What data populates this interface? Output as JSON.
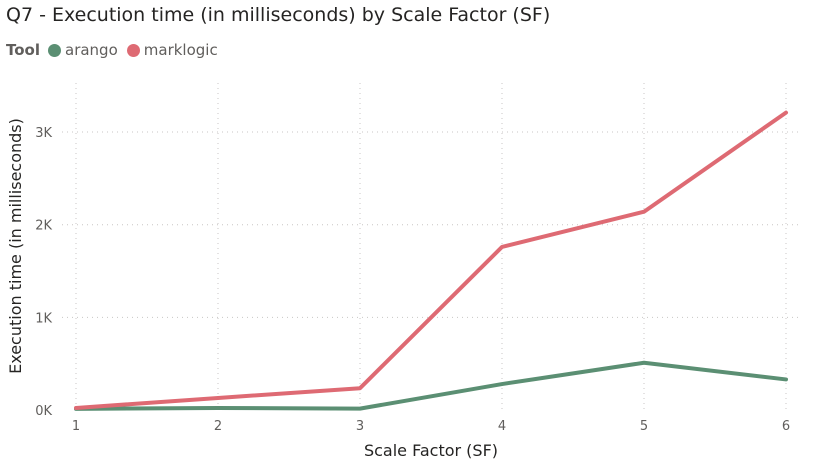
{
  "chart_data": {
    "type": "line",
    "title": "Q7 - Execution time (in milliseconds) by Scale Factor (SF)",
    "legend_title": "Tool",
    "legend_position": "top-left",
    "xlabel": "Scale Factor (SF)",
    "ylabel": "Execution time (in milliseconds)",
    "x": [
      1,
      2,
      3,
      4,
      5,
      6
    ],
    "x_tick_labels": [
      "1",
      "2",
      "3",
      "4",
      "5",
      "6"
    ],
    "y_ticks": [
      0,
      1000,
      2000,
      3000
    ],
    "y_tick_labels": [
      "0K",
      "1K",
      "2K",
      "3K"
    ],
    "ylim": [
      0,
      3400
    ],
    "grid": true,
    "series": [
      {
        "name": "arango",
        "color": "#5b8f73",
        "values": [
          12,
          22,
          15,
          280,
          510,
          330
        ]
      },
      {
        "name": "marklogic",
        "color": "#de6a73",
        "values": [
          22,
          130,
          235,
          1760,
          2140,
          3210
        ]
      }
    ]
  }
}
